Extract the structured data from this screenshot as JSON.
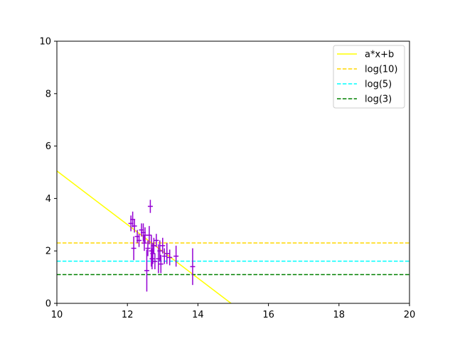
{
  "chart_data": {
    "type": "scatter",
    "title": "",
    "xlabel": "",
    "ylabel": "",
    "xlim": [
      10,
      20
    ],
    "ylim": [
      0,
      10
    ],
    "xticks": [
      "10",
      "12",
      "14",
      "16",
      "18",
      "20"
    ],
    "yticks": [
      "0",
      "2",
      "4",
      "6",
      "8",
      "10"
    ],
    "grid": false,
    "legend_position": "top-right",
    "series": [
      {
        "name": "a*x+b",
        "kind": "line",
        "color": "#ffff00",
        "style": "solid",
        "x": [
          10,
          14.94
        ],
        "y": [
          5.05,
          0
        ]
      },
      {
        "name": "log(10)",
        "kind": "hline",
        "color": "#ffd700",
        "style": "dashed",
        "y": 2.303
      },
      {
        "name": "log(5)",
        "kind": "hline",
        "color": "#00ffff",
        "style": "dashed",
        "y": 1.609
      },
      {
        "name": "log(3)",
        "kind": "hline",
        "color": "#008000",
        "style": "dashed",
        "y": 1.099
      },
      {
        "kind": "errorbar",
        "color": "#9400d3",
        "points": [
          {
            "x": 12.1,
            "y": 3.05,
            "err": 0.3
          },
          {
            "x": 12.15,
            "y": 3.2,
            "err": 0.3
          },
          {
            "x": 12.18,
            "y": 2.1,
            "err": 0.45
          },
          {
            "x": 12.2,
            "y": 2.95,
            "err": 0.25
          },
          {
            "x": 12.28,
            "y": 2.55,
            "err": 0.25
          },
          {
            "x": 12.33,
            "y": 2.4,
            "err": 0.25
          },
          {
            "x": 12.4,
            "y": 2.8,
            "err": 0.25
          },
          {
            "x": 12.45,
            "y": 2.7,
            "err": 0.35
          },
          {
            "x": 12.48,
            "y": 2.3,
            "err": 0.3
          },
          {
            "x": 12.5,
            "y": 2.6,
            "err": 0.3
          },
          {
            "x": 12.55,
            "y": 1.25,
            "err": 0.8
          },
          {
            "x": 12.58,
            "y": 2.1,
            "err": 0.3
          },
          {
            "x": 12.62,
            "y": 2.6,
            "err": 0.35
          },
          {
            "x": 12.65,
            "y": 3.7,
            "err": 0.25
          },
          {
            "x": 12.68,
            "y": 2.0,
            "err": 0.6
          },
          {
            "x": 12.7,
            "y": 1.7,
            "err": 0.4
          },
          {
            "x": 12.72,
            "y": 1.9,
            "err": 0.4
          },
          {
            "x": 12.75,
            "y": 2.2,
            "err": 0.3
          },
          {
            "x": 12.78,
            "y": 1.6,
            "err": 0.3
          },
          {
            "x": 12.82,
            "y": 2.4,
            "err": 0.25
          },
          {
            "x": 12.88,
            "y": 1.7,
            "err": 0.55
          },
          {
            "x": 12.92,
            "y": 2.0,
            "err": 0.4
          },
          {
            "x": 12.95,
            "y": 1.5,
            "err": 0.35
          },
          {
            "x": 13.0,
            "y": 2.2,
            "err": 0.3
          },
          {
            "x": 13.05,
            "y": 1.8,
            "err": 0.3
          },
          {
            "x": 13.12,
            "y": 1.9,
            "err": 0.4
          },
          {
            "x": 13.2,
            "y": 1.75,
            "err": 0.3
          },
          {
            "x": 13.38,
            "y": 1.8,
            "err": 0.4
          },
          {
            "x": 13.85,
            "y": 1.4,
            "err": 0.7
          }
        ]
      }
    ]
  }
}
